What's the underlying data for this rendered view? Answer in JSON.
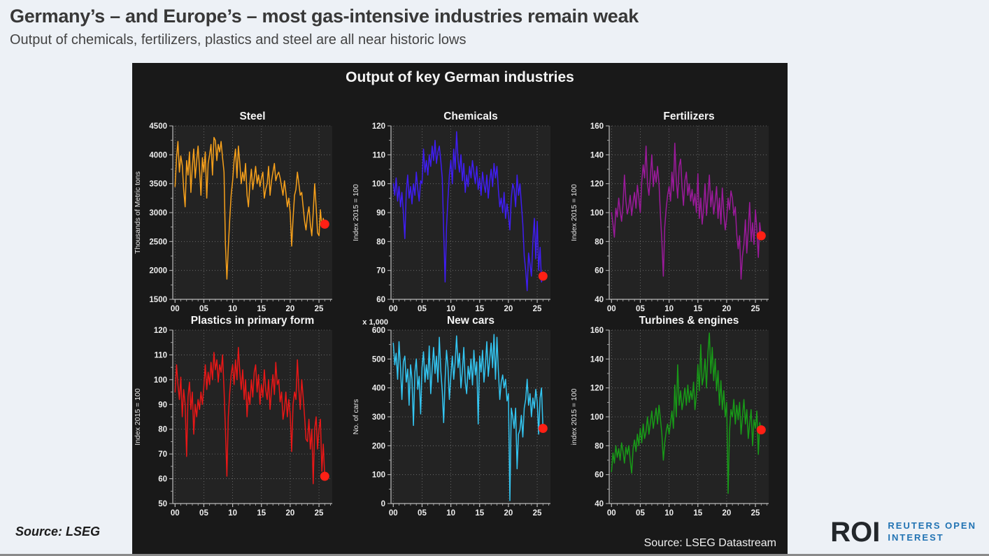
{
  "header": {
    "title": "Germany’s – and Europe’s – most gas-intensive industries remain weak",
    "subtitle": "Output of chemicals, fertilizers, plastics and steel are all near historic lows"
  },
  "panel": {
    "title": "Output of key German industries",
    "source": "Source: LSEG Datastream"
  },
  "footer": {
    "source": "Source: LSEG"
  },
  "logo": {
    "mark": "ROI",
    "line1": "REUTERS OPEN",
    "line2": "INTEREST"
  },
  "colors": {
    "page_bg": "#edf1f6",
    "panel_bg": "#191919",
    "plot_bg": "#232323",
    "grid": "#757575",
    "axis": "#bcbcbc",
    "tick_text": "#ededed",
    "endpoint": "#ff2015"
  },
  "chart_data": [
    {
      "type": "line",
      "title": "Steel",
      "ylabel": "Thousands of Metric tons",
      "unit_label": "",
      "color": "#f6a01b",
      "endpoint_color": "#ff2015",
      "ylim": [
        1500,
        4500
      ],
      "yticks": [
        1500,
        2000,
        2500,
        3000,
        3500,
        4000,
        4500
      ],
      "xlim": [
        1999.6,
        2027.3
      ],
      "xticks": [
        2000,
        2005,
        2010,
        2015,
        2020,
        2025
      ],
      "xtick_labels": [
        "00",
        "05",
        "10",
        "15",
        "20",
        "25"
      ],
      "x_start": 2000,
      "x_step": 0.25,
      "values": [
        3450,
        3950,
        4230,
        3700,
        3980,
        3820,
        3400,
        3100,
        3900,
        3650,
        4050,
        3350,
        3800,
        4100,
        3600,
        3900,
        4150,
        3750,
        3300,
        3950,
        3700,
        4050,
        3250,
        3850,
        4000,
        4180,
        3650,
        4300,
        4250,
        3900,
        4180,
        4050,
        4230,
        3950,
        3700,
        2450,
        1850,
        2400,
        2900,
        3300,
        3550,
        3900,
        4100,
        3600,
        4150,
        3850,
        3500,
        3700,
        3550,
        3850,
        3300,
        3100,
        3500,
        3750,
        3400,
        3600,
        3800,
        3500,
        3650,
        3450,
        3600,
        3700,
        3250,
        3400,
        3500,
        3800,
        3300,
        3550,
        3700,
        3850,
        3550,
        3650,
        3700,
        3600,
        3450,
        3300,
        3550,
        3350,
        3100,
        3250,
        3000,
        2420,
        2900,
        3300,
        3400,
        3700,
        3500,
        3300,
        3350,
        3100,
        2850,
        2700,
        2950,
        3100,
        2800,
        2600,
        3000,
        3500,
        3100,
        2650,
        2600,
        3050,
        2750,
        2900,
        2800
      ]
    },
    {
      "type": "line",
      "title": "Chemicals",
      "ylabel": "Index 2015 = 100",
      "unit_label": "",
      "color": "#3f1df2",
      "endpoint_color": "#ff2015",
      "ylim": [
        60,
        120
      ],
      "yticks": [
        60,
        70,
        80,
        90,
        100,
        110,
        120
      ],
      "xlim": [
        1999.6,
        2027.3
      ],
      "xticks": [
        2000,
        2005,
        2010,
        2015,
        2020,
        2025
      ],
      "xtick_labels": [
        "00",
        "05",
        "10",
        "15",
        "20",
        "25"
      ],
      "x_start": 2000,
      "x_step": 0.25,
      "values": [
        100,
        96,
        102,
        94,
        99,
        92,
        97,
        90,
        81,
        97,
        103,
        95,
        99,
        93,
        100,
        96,
        104,
        98,
        94,
        101,
        100,
        112,
        104,
        108,
        103,
        110,
        106,
        113,
        108,
        115,
        107,
        111,
        113,
        108,
        102,
        84,
        66,
        85,
        95,
        103,
        108,
        100,
        112,
        105,
        118,
        108,
        104,
        110,
        101,
        107,
        97,
        103,
        99,
        106,
        102,
        108,
        104,
        100,
        106,
        98,
        102,
        96,
        104,
        100,
        97,
        103,
        95,
        101,
        105,
        99,
        107,
        102,
        106,
        98,
        92,
        95,
        90,
        97,
        88,
        93,
        89,
        84,
        95,
        100,
        98,
        92,
        103,
        96,
        100,
        93,
        86,
        75,
        70,
        63,
        76,
        72,
        68,
        80,
        88,
        74,
        87,
        70,
        78,
        66,
        68
      ]
    },
    {
      "type": "line",
      "title": "Fertilizers",
      "ylabel": "Index 2015 = 100",
      "unit_label": "",
      "color": "#9b1a9b",
      "endpoint_color": "#ff2015",
      "ylim": [
        40,
        160
      ],
      "yticks": [
        40,
        60,
        80,
        100,
        120,
        140,
        160
      ],
      "xlim": [
        1999.6,
        2027.3
      ],
      "xticks": [
        2000,
        2005,
        2010,
        2015,
        2020,
        2025
      ],
      "xtick_labels": [
        "00",
        "05",
        "10",
        "15",
        "20",
        "25"
      ],
      "x_start": 2000,
      "x_step": 0.25,
      "values": [
        100,
        92,
        83,
        103,
        97,
        110,
        101,
        94,
        106,
        126,
        108,
        99,
        104,
        112,
        98,
        107,
        114,
        103,
        119,
        110,
        100,
        121,
        133,
        124,
        146,
        120,
        112,
        125,
        140,
        118,
        129,
        121,
        132,
        120,
        98,
        80,
        56,
        90,
        103,
        112,
        118,
        108,
        128,
        115,
        148,
        122,
        110,
        132,
        137,
        118,
        105,
        122,
        128,
        112,
        120,
        108,
        116,
        105,
        113,
        100,
        127,
        96,
        110,
        92,
        103,
        120,
        98,
        112,
        126,
        104,
        115,
        99,
        108,
        118,
        96,
        110,
        92,
        117,
        100,
        88,
        96,
        110,
        102,
        115,
        110,
        98,
        104,
        85,
        75,
        84,
        54,
        70,
        78,
        95,
        72,
        88,
        107,
        80,
        93,
        78,
        102,
        88,
        69,
        93,
        84
      ]
    },
    {
      "type": "line",
      "title": "Plastics in primary form",
      "ylabel": "Index 2015 = 100",
      "unit_label": "",
      "color": "#e81717",
      "endpoint_color": "#ff2015",
      "ylim": [
        50,
        120
      ],
      "yticks": [
        50,
        60,
        70,
        80,
        90,
        100,
        110,
        120
      ],
      "xlim": [
        1999.6,
        2027.3
      ],
      "xticks": [
        2000,
        2005,
        2010,
        2015,
        2020,
        2025
      ],
      "xtick_labels": [
        "00",
        "05",
        "10",
        "15",
        "20",
        "25"
      ],
      "x_start": 2000,
      "x_step": 0.25,
      "values": [
        95,
        106,
        98,
        92,
        101,
        85,
        96,
        90,
        69,
        93,
        99,
        88,
        95,
        78,
        90,
        85,
        92,
        88,
        95,
        90,
        97,
        106,
        96,
        103,
        98,
        107,
        100,
        111,
        104,
        108,
        99,
        106,
        103,
        110,
        96,
        80,
        61,
        85,
        95,
        102,
        106,
        98,
        108,
        100,
        113,
        103,
        96,
        104,
        92,
        100,
        85,
        95,
        90,
        100,
        93,
        103,
        106,
        95,
        102,
        90,
        98,
        93,
        104,
        96,
        92,
        100,
        88,
        96,
        102,
        94,
        107,
        98,
        100,
        91,
        95,
        84,
        88,
        95,
        85,
        92,
        86,
        71,
        90,
        95,
        92,
        108,
        96,
        88,
        100,
        93,
        85,
        76,
        75,
        84,
        72,
        80,
        58,
        80,
        85,
        72,
        80,
        84,
        63,
        74,
        61
      ]
    },
    {
      "type": "line",
      "title": "New cars",
      "ylabel": "No. of cars",
      "unit_label": "x 1,000",
      "color": "#33c6f2",
      "endpoint_color": "#ff2015",
      "ylim": [
        0,
        600
      ],
      "yticks": [
        0,
        100,
        200,
        300,
        400,
        500,
        600
      ],
      "xlim": [
        1999.6,
        2027.3
      ],
      "xticks": [
        2000,
        2005,
        2010,
        2015,
        2020,
        2025
      ],
      "xtick_labels": [
        "00",
        "05",
        "10",
        "15",
        "20",
        "25"
      ],
      "x_start": 2000,
      "x_step": 0.25,
      "values": [
        555,
        480,
        520,
        430,
        560,
        470,
        360,
        490,
        510,
        420,
        465,
        340,
        480,
        430,
        270,
        455,
        500,
        395,
        440,
        310,
        470,
        525,
        420,
        480,
        430,
        545,
        380,
        465,
        540,
        450,
        510,
        420,
        575,
        460,
        390,
        280,
        430,
        530,
        470,
        360,
        440,
        510,
        430,
        490,
        580,
        470,
        520,
        400,
        460,
        540,
        420,
        380,
        475,
        430,
        500,
        410,
        530,
        445,
        490,
        275,
        510,
        455,
        530,
        420,
        480,
        560,
        440,
        500,
        555,
        470,
        585,
        430,
        575,
        460,
        360,
        420,
        445,
        400,
        430,
        355,
        380,
        10,
        330,
        300,
        260,
        330,
        120,
        240,
        255,
        305,
        230,
        330,
        360,
        430,
        340,
        380,
        300,
        365,
        330,
        395,
        350,
        240,
        365,
        400,
        260
      ]
    },
    {
      "type": "line",
      "title": "Turbines & engines",
      "ylabel": "index 2015 = 100",
      "unit_label": "",
      "color": "#189a18",
      "endpoint_color": "#ff2015",
      "ylim": [
        40,
        160
      ],
      "yticks": [
        40,
        60,
        80,
        100,
        120,
        140,
        160
      ],
      "xlim": [
        1999.6,
        2027.3
      ],
      "xticks": [
        2000,
        2005,
        2010,
        2015,
        2020,
        2025
      ],
      "xtick_labels": [
        "00",
        "05",
        "10",
        "15",
        "20",
        "25"
      ],
      "x_start": 2000,
      "x_step": 0.25,
      "values": [
        62,
        75,
        68,
        80,
        72,
        78,
        70,
        82,
        76,
        68,
        79,
        74,
        80,
        70,
        61,
        78,
        84,
        76,
        88,
        80,
        92,
        82,
        95,
        85,
        90,
        100,
        88,
        96,
        104,
        92,
        99,
        106,
        95,
        108,
        98,
        88,
        70,
        82,
        90,
        95,
        88,
        96,
        104,
        92,
        122,
        100,
        136,
        108,
        118,
        105,
        112,
        120,
        108,
        122,
        110,
        118,
        112,
        124,
        105,
        115,
        136,
        118,
        150,
        122,
        128,
        140,
        120,
        145,
        158,
        130,
        148,
        125,
        140,
        118,
        132,
        108,
        125,
        105,
        118,
        100,
        110,
        47,
        90,
        105,
        100,
        112,
        95,
        108,
        98,
        110,
        88,
        100,
        112,
        95,
        105,
        85,
        95,
        105,
        80,
        98,
        92,
        104,
        74,
        96,
        91
      ]
    }
  ]
}
